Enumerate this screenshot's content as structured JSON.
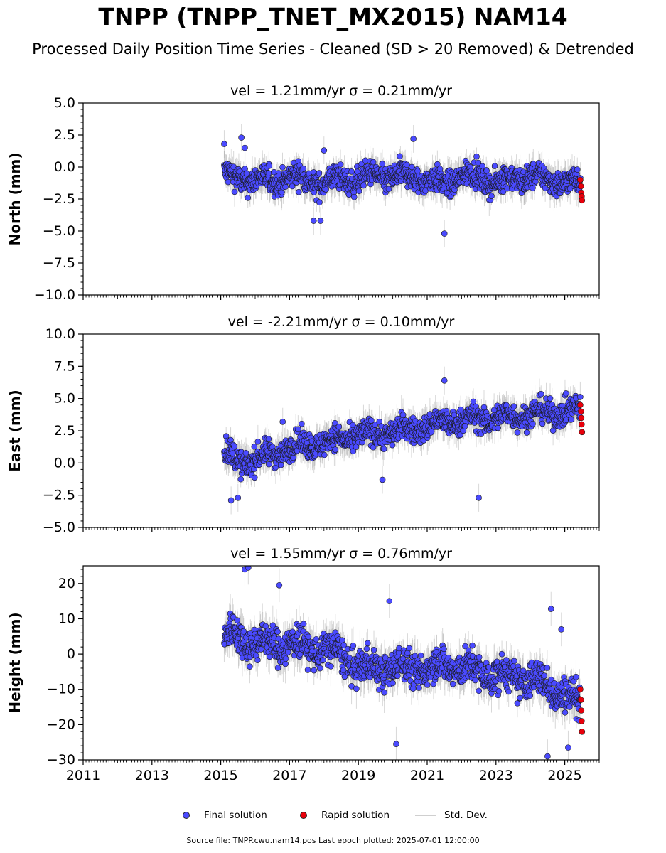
{
  "title": "TNPP (TNPP_TNET_MX2015) NAM14",
  "subtitle": "Processed Daily Position Time Series - Cleaned (SD > 20 Removed) & Detrended",
  "legend": {
    "final": "Final solution",
    "rapid": "Rapid solution",
    "std": "Std. Dev."
  },
  "footer": "Source file: TNPP.cwu.nam14.pos  Last epoch plotted: 2025-07-01 12:00:00",
  "colors": {
    "final": "#4a4aff",
    "rapid": "#e8000b",
    "std": "#a9a9a9",
    "outline": "#1a1a1a"
  },
  "chart_data": [
    {
      "type": "scatter",
      "subplot_title": "vel = 1.21mm/yr   σ = 0.21mm/yr",
      "ylabel": "North (mm)",
      "ylim": [
        -10,
        5
      ],
      "yticks": [
        5.0,
        2.5,
        0.0,
        -2.5,
        -5.0,
        -7.5,
        -10.0
      ],
      "ytick_labels": [
        "5.0",
        "2.5",
        "0.0",
        "−2.5",
        "−5.0",
        "−7.5",
        "−10.0"
      ],
      "xlim": [
        2011,
        2026
      ],
      "xticks": [
        2011,
        2013,
        2015,
        2017,
        2019,
        2021,
        2023,
        2025
      ],
      "show_xlabels": false,
      "series": [
        {
          "name": "Final solution",
          "x": [
            2015.1,
            2015.3,
            2015.6,
            2016.0,
            2016.5,
            2017.0,
            2017.5,
            2018.0,
            2018.5,
            2019.0,
            2019.5,
            2020.0,
            2020.5,
            2021.0,
            2021.5,
            2022.0,
            2022.5,
            2023.0,
            2023.5,
            2024.0,
            2024.5,
            2025.0,
            2025.4
          ],
          "y": [
            -0.5,
            -0.8,
            -1.0,
            -0.9,
            -1.2,
            -0.7,
            -1.0,
            -1.3,
            -0.9,
            -1.0,
            -0.6,
            -0.8,
            -0.7,
            -1.0,
            -1.4,
            -0.6,
            -0.8,
            -1.2,
            -0.9,
            -0.7,
            -1.0,
            -1.1,
            -1.3
          ],
          "spread": 0.9,
          "stdev": 0.9
        },
        {
          "name": "Rapid solution",
          "x": [
            2025.45,
            2025.47,
            2025.48,
            2025.49,
            2025.5
          ],
          "y": [
            -1.0,
            -1.5,
            -2.0,
            -2.3,
            -2.6
          ]
        }
      ],
      "outliers": {
        "x": [
          2015.1,
          2015.6,
          2015.7,
          2020.6,
          2021.5,
          2018.0,
          2017.7,
          2017.9
        ],
        "y": [
          1.8,
          2.3,
          1.5,
          2.2,
          -5.2,
          1.3,
          -4.2,
          -4.2
        ]
      }
    },
    {
      "type": "scatter",
      "subplot_title": "vel = -2.21mm/yr   σ = 0.10mm/yr",
      "ylabel": "East (mm)",
      "ylim": [
        -5,
        10
      ],
      "yticks": [
        10.0,
        7.5,
        5.0,
        2.5,
        0.0,
        -2.5,
        -5.0
      ],
      "ytick_labels": [
        "10.0",
        "7.5",
        "5.0",
        "2.5",
        "0.0",
        "−2.5",
        "−5.0"
      ],
      "xlim": [
        2011,
        2026
      ],
      "xticks": [
        2011,
        2013,
        2015,
        2017,
        2019,
        2021,
        2023,
        2025
      ],
      "show_xlabels": false,
      "series": [
        {
          "name": "Final solution",
          "x": [
            2015.1,
            2015.3,
            2015.6,
            2016.0,
            2016.5,
            2017.0,
            2017.5,
            2018.0,
            2018.5,
            2019.0,
            2019.5,
            2020.0,
            2020.5,
            2021.0,
            2021.5,
            2022.0,
            2022.5,
            2023.0,
            2023.5,
            2024.0,
            2024.5,
            2025.0,
            2025.4
          ],
          "y": [
            0.9,
            0.5,
            0.0,
            0.3,
            0.7,
            1.2,
            1.4,
            1.6,
            1.9,
            2.1,
            2.3,
            2.4,
            2.6,
            2.8,
            3.2,
            3.3,
            3.4,
            3.5,
            3.6,
            3.8,
            3.9,
            4.0,
            4.0
          ],
          "spread": 0.9,
          "stdev": 0.9
        },
        {
          "name": "Rapid solution",
          "x": [
            2025.45,
            2025.47,
            2025.48,
            2025.49,
            2025.5
          ],
          "y": [
            4.5,
            4.0,
            3.5,
            3.0,
            2.4
          ]
        }
      ],
      "outliers": {
        "x": [
          2022.5,
          2021.5,
          2019.7,
          2015.5,
          2015.3,
          2016.8
        ],
        "y": [
          -2.7,
          6.4,
          -1.3,
          -2.7,
          -2.9,
          3.2
        ]
      }
    },
    {
      "type": "scatter",
      "subplot_title": "vel = 1.55mm/yr   σ = 0.76mm/yr",
      "ylabel": "Height (mm)",
      "ylim": [
        -30,
        25
      ],
      "yticks": [
        20,
        10,
        0,
        -10,
        -20,
        -30
      ],
      "ytick_labels": [
        "20",
        "10",
        "0",
        "−10",
        "−20",
        "−30"
      ],
      "xlim": [
        2011,
        2026
      ],
      "xticks": [
        2011,
        2013,
        2015,
        2017,
        2019,
        2021,
        2023,
        2025
      ],
      "xtick_labels": [
        "2011",
        "2013",
        "2015",
        "2017",
        "2019",
        "2021",
        "2023",
        "2025"
      ],
      "show_xlabels": true,
      "series": [
        {
          "name": "Final solution",
          "x": [
            2015.1,
            2015.3,
            2015.6,
            2016.0,
            2016.5,
            2017.0,
            2017.5,
            2018.0,
            2018.5,
            2019.0,
            2019.5,
            2020.0,
            2020.5,
            2021.0,
            2021.5,
            2022.0,
            2022.5,
            2023.0,
            2023.5,
            2024.0,
            2024.5,
            2025.0,
            2025.4
          ],
          "y": [
            3.0,
            6.0,
            5.0,
            3.0,
            3.0,
            3.0,
            2.0,
            1.0,
            0.0,
            -4.0,
            -4.0,
            -4.0,
            -4.0,
            -4.0,
            -3.0,
            -4.0,
            -5.0,
            -6.0,
            -7.0,
            -7.0,
            -9.0,
            -11.0,
            -14.0
          ],
          "spread": 4.5,
          "stdev": 4.0
        },
        {
          "name": "Rapid solution",
          "x": [
            2025.45,
            2025.47,
            2025.48,
            2025.49,
            2025.5
          ],
          "y": [
            -10.0,
            -13.0,
            -16.0,
            -19.0,
            -22.0
          ]
        }
      ],
      "outliers": {
        "x": [
          2015.7,
          2015.8,
          2016.7,
          2020.1,
          2019.9,
          2024.5,
          2024.6,
          2025.1,
          2024.9
        ],
        "y": [
          24.0,
          24.5,
          19.5,
          -25.5,
          15.0,
          -29.0,
          12.8,
          -26.5,
          7.0
        ]
      }
    }
  ]
}
